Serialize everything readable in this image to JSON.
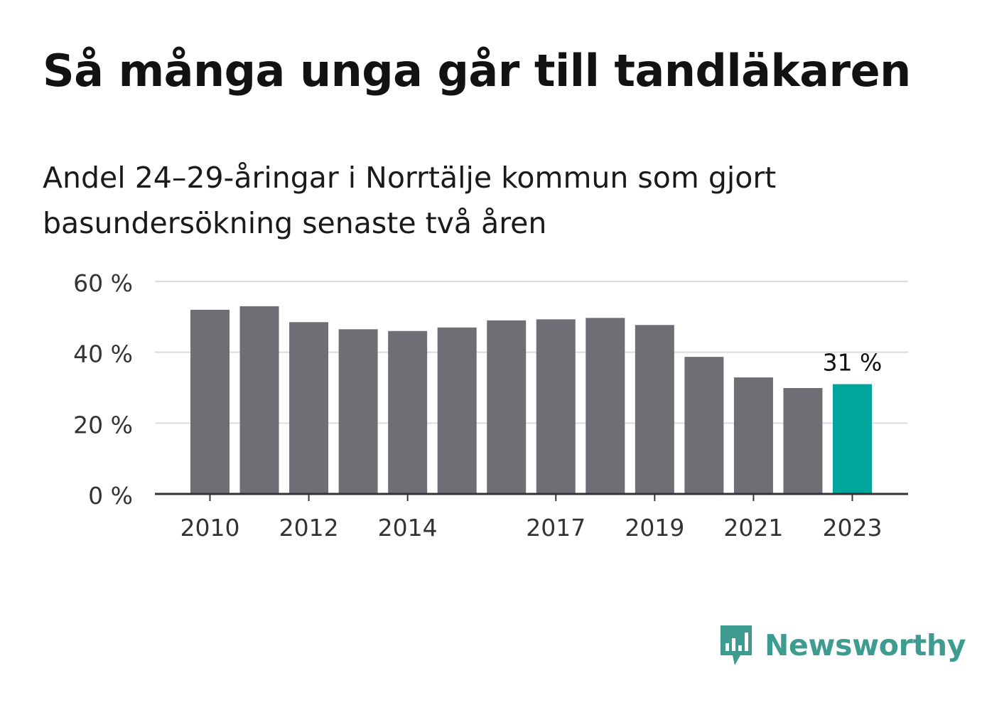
{
  "header": {
    "title": "Så många unga går till tandläkaren",
    "subtitle": "Andel 24–29-åringar i Norrtälje kommun som gjort basundersökning senaste två åren"
  },
  "brand": {
    "name": "Newsworthy",
    "icon": "newsworthy-logo-icon",
    "color": "#3d9b8f"
  },
  "chart_data": {
    "type": "bar",
    "title": "Så många unga går till tandläkaren",
    "subtitle": "Andel 24–29-åringar i Norrtälje kommun som gjort basundersökning senaste två åren",
    "categories": [
      "2010",
      "2011",
      "2012",
      "2013",
      "2014",
      "2015",
      "2016",
      "2017",
      "2018",
      "2019",
      "2020",
      "2021",
      "2022",
      "2023"
    ],
    "values": [
      52,
      53,
      48.5,
      46.5,
      46,
      47,
      49,
      49.3,
      49.7,
      47.7,
      38.7,
      32.9,
      29.9,
      31
    ],
    "x_tick_labels": [
      "2010",
      "2012",
      "2014",
      "2017",
      "2019",
      "2021",
      "2023"
    ],
    "y_tick_labels": [
      "0 %",
      "20 %",
      "40 %",
      "60 %"
    ],
    "y_ticks": [
      0,
      20,
      40,
      60
    ],
    "ylim": [
      0,
      60
    ],
    "grid": true,
    "highlight": {
      "category": "2023",
      "label": "31 %",
      "color": "#00a59b"
    },
    "bar_color": "#6f6e75"
  }
}
